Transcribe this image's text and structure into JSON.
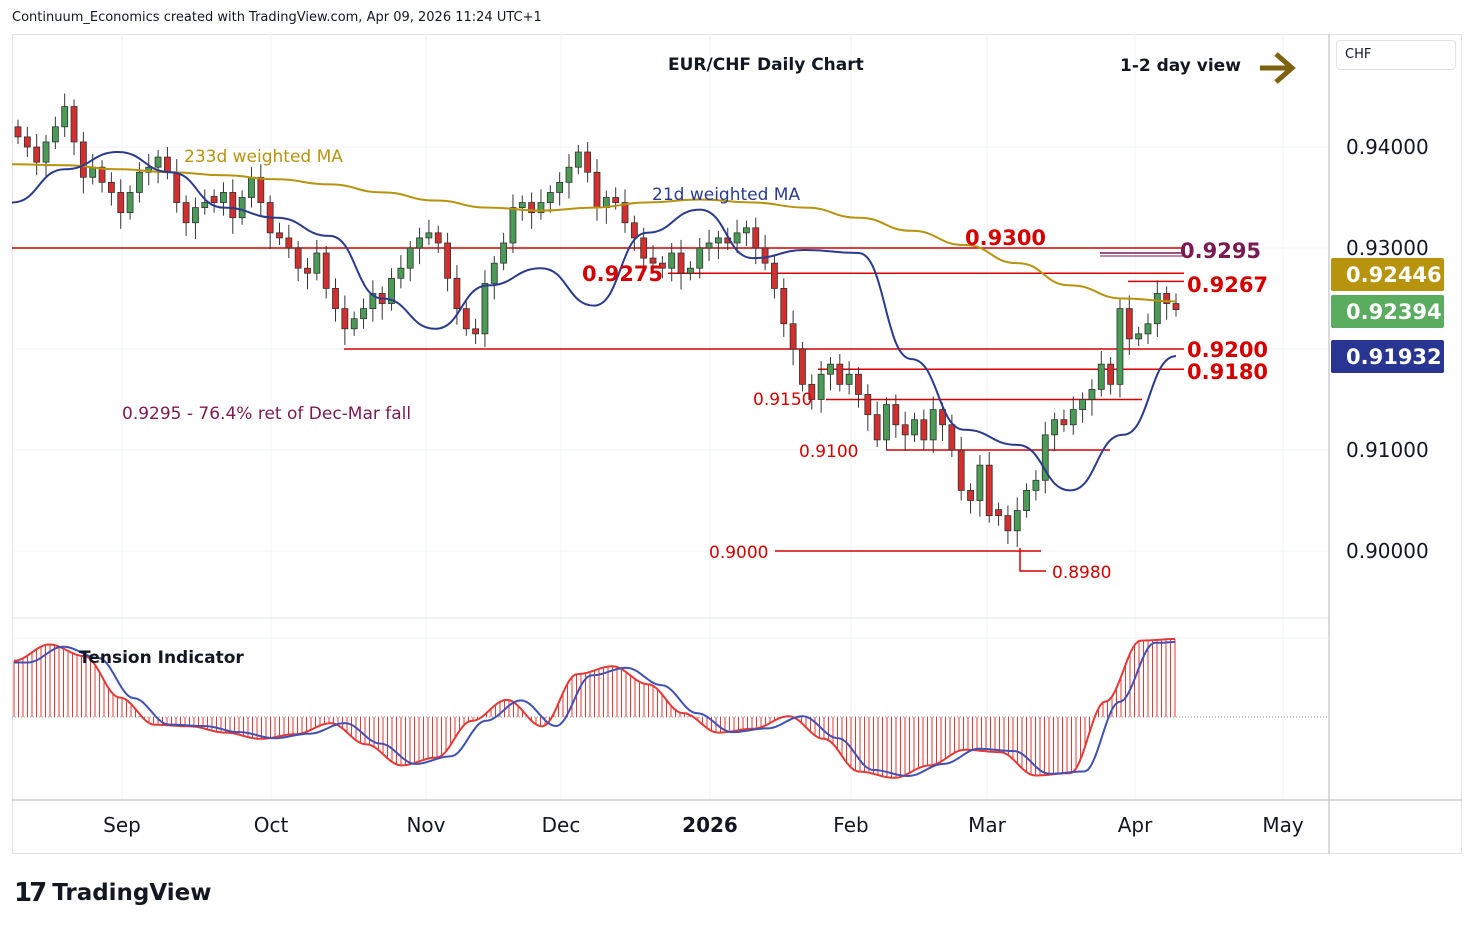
{
  "header": {
    "text": "Continuum_Economics created with TradingView.com, Apr 09, 2026 11:24 UTC+1"
  },
  "currency": "CHF",
  "logo_text": "TradingView",
  "colors": {
    "up": "#4a9b56",
    "down": "#d32f2f",
    "wick": "#333333",
    "ma233": "#b8930e",
    "ma21": "#2a3b8f",
    "level": "#d50000",
    "retrace": "#7b1a52",
    "arrow": "#7f6210",
    "badge_ma233": "#b8930e",
    "badge_last": "#5aac5e",
    "badge_ma21": "#283593"
  },
  "chart_data": [
    {
      "type": "candlestick",
      "title": "EUR/CHF Daily Chart",
      "subtitle": "1-2 day view",
      "x_ticks": [
        "Sep",
        "Oct",
        "Nov",
        "Dec",
        "2026",
        "Feb",
        "Mar",
        "Apr",
        "May"
      ],
      "y_ticks": [
        "0.94000",
        "0.93000",
        "0.91000",
        "0.90000"
      ],
      "ylim": [
        0.8935,
        0.951
      ],
      "series": [
        {
          "name": "233d weighted MA",
          "values": [
            0.9383,
            0.9382,
            0.9378,
            0.9375,
            0.9372,
            0.9368,
            0.9363,
            0.9355,
            0.9347,
            0.934,
            0.9337,
            0.934,
            0.9345,
            0.9348,
            0.9345,
            0.934,
            0.933,
            0.9317,
            0.9303,
            0.9285,
            0.9263,
            0.925,
            0.9247
          ]
        },
        {
          "name": "21d weighted MA",
          "values": [
            0.9345,
            0.9378,
            0.9395,
            0.9375,
            0.934,
            0.933,
            0.9312,
            0.925,
            0.922,
            0.9263,
            0.928,
            0.9243,
            0.9315,
            0.9338,
            0.929,
            0.9298,
            0.9295,
            0.919,
            0.912,
            0.9105,
            0.906,
            0.9115,
            0.9193
          ]
        }
      ],
      "annotations": {
        "ma233_label": "233d weighted MA",
        "ma21_label": "21d weighted MA",
        "retracement_note": "0.9295 - 76.4% ret of Dec-Mar fall",
        "low_label": "0.8980",
        "indicator_label": "Tension Indicator"
      },
      "levels": [
        {
          "label": "0.9300",
          "value": 0.93
        },
        {
          "label": "0.9295",
          "value": 0.9295
        },
        {
          "label": "0.9275",
          "value": 0.9275
        },
        {
          "label": "0.9267",
          "value": 0.9267
        },
        {
          "label": "0.9200",
          "value": 0.92
        },
        {
          "label": "0.9180",
          "value": 0.918
        },
        {
          "label": "0.9150",
          "value": 0.915
        },
        {
          "label": "0.9100",
          "value": 0.91
        },
        {
          "label": "0.9000",
          "value": 0.9
        }
      ],
      "price_badges": [
        {
          "label": "0.92446",
          "value": 0.92446
        },
        {
          "label": "0.92394",
          "value": 0.92394
        },
        {
          "label": "0.91932",
          "value": 0.91932
        }
      ],
      "candles_close": [
        0.941,
        0.94,
        0.9385,
        0.9405,
        0.942,
        0.944,
        0.9405,
        0.937,
        0.938,
        0.9365,
        0.9355,
        0.9335,
        0.9355,
        0.9375,
        0.938,
        0.939,
        0.9375,
        0.9345,
        0.9325,
        0.934,
        0.9345,
        0.9345,
        0.9355,
        0.933,
        0.935,
        0.937,
        0.9345,
        0.9315,
        0.931,
        0.93,
        0.928,
        0.9275,
        0.9295,
        0.926,
        0.924,
        0.922,
        0.923,
        0.924,
        0.9255,
        0.9245,
        0.927,
        0.928,
        0.93,
        0.931,
        0.9315,
        0.9305,
        0.927,
        0.924,
        0.922,
        0.9215,
        0.9265,
        0.9285,
        0.9305,
        0.934,
        0.9345,
        0.9335,
        0.9345,
        0.9355,
        0.9365,
        0.938,
        0.9395,
        0.9375,
        0.934,
        0.935,
        0.9345,
        0.9325,
        0.931,
        0.929,
        0.9285,
        0.928,
        0.9295,
        0.9275,
        0.928,
        0.93,
        0.9305,
        0.931,
        0.9305,
        0.9315,
        0.932,
        0.93,
        0.9285,
        0.926,
        0.9225,
        0.92,
        0.9165,
        0.915,
        0.9175,
        0.9185,
        0.9165,
        0.9175,
        0.9155,
        0.9135,
        0.911,
        0.9145,
        0.9125,
        0.9115,
        0.913,
        0.911,
        0.914,
        0.9125,
        0.91,
        0.906,
        0.905,
        0.9085,
        0.9035,
        0.9035,
        0.902,
        0.904,
        0.906,
        0.907,
        0.9115,
        0.913,
        0.9125,
        0.914,
        0.915,
        0.916,
        0.9185,
        0.9165,
        0.924,
        0.921,
        0.9215,
        0.9225,
        0.9255,
        0.9245,
        0.9239
      ],
      "tension_indicator": {
        "zero_line": 0,
        "last_level": 1.0
      }
    }
  ]
}
